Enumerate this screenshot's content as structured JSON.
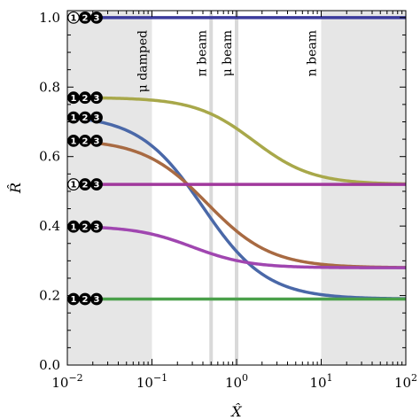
{
  "chart_data": {
    "type": "line",
    "title": "",
    "xlabel": "X̂",
    "ylabel": "R̂",
    "x_scale": "log",
    "xlim": [
      0.01,
      100
    ],
    "ylim": [
      0,
      1.02
    ],
    "x_ticks": [
      {
        "value": 0.01,
        "base": "10",
        "exp": "−2"
      },
      {
        "value": 0.1,
        "base": "10",
        "exp": "−1"
      },
      {
        "value": 1,
        "base": "10",
        "exp": "0"
      },
      {
        "value": 10,
        "base": "10",
        "exp": "1"
      },
      {
        "value": 100,
        "base": "10",
        "exp": "2"
      }
    ],
    "y_ticks": [
      {
        "value": 0.0,
        "label": "0.0"
      },
      {
        "value": 0.2,
        "label": "0.2"
      },
      {
        "value": 0.4,
        "label": "0.4"
      },
      {
        "value": 0.6,
        "label": "0.6"
      },
      {
        "value": 0.8,
        "label": "0.8"
      },
      {
        "value": 1.0,
        "label": "1.0"
      }
    ],
    "grid": false,
    "shaded_regions": [
      {
        "x": [
          0.01,
          0.1
        ],
        "color": "#e6e6e6"
      },
      {
        "x": [
          10,
          100
        ],
        "color": "#e6e6e6"
      }
    ],
    "vertical_lines": [
      {
        "x": 0.5,
        "color": "#d9d9d9"
      },
      {
        "x": 1.0,
        "color": "#d9d9d9"
      }
    ],
    "annotations": [
      {
        "text": "μ damped",
        "x": 0.1
      },
      {
        "text": "π beam",
        "x": 0.5
      },
      {
        "text": "μ beam",
        "x": 1.0
      },
      {
        "text": "n beam",
        "x": 10
      }
    ],
    "series": [
      {
        "color": "#3b3b9c",
        "type": "constant",
        "value": 1.0,
        "badge": [
          "open",
          "filled",
          "filled"
        ]
      },
      {
        "color": "#a8a84a",
        "type": "sigmoid",
        "start": 0.77,
        "end": 0.52,
        "x0": 1.6,
        "steep": 1.25,
        "badge": [
          "filled",
          "filled",
          "filled"
        ]
      },
      {
        "color": "#4a68a8",
        "type": "sigmoid",
        "start": 0.72,
        "end": 0.19,
        "x0": 0.4,
        "steep": 1.15,
        "badge": [
          "filled",
          "filled",
          "filled"
        ]
      },
      {
        "color": "#a86a42",
        "type": "sigmoid",
        "start": 0.65,
        "end": 0.28,
        "x0": 0.45,
        "steep": 1.15,
        "badge": [
          "filled",
          "filled",
          "filled"
        ]
      },
      {
        "color": "#a0389c",
        "type": "constant",
        "value": 0.52,
        "badge": [
          "open",
          "filled",
          "filled"
        ]
      },
      {
        "color": "#a046b0",
        "type": "sigmoid",
        "start": 0.4,
        "end": 0.28,
        "x0": 0.3,
        "steep": 1.3,
        "badge": [
          "filled",
          "filled",
          "filled"
        ]
      },
      {
        "color": "#4aa04a",
        "type": "constant",
        "value": 0.19,
        "badge": [
          "filled",
          "filled",
          "filled"
        ]
      }
    ],
    "badge_digits": [
      "1",
      "2",
      "3"
    ]
  }
}
